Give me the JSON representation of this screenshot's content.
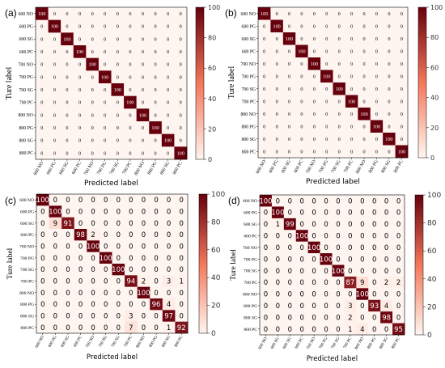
{
  "colors": {
    "low": "#fff5f0",
    "mid": "#f4775a",
    "high": "#67000d",
    "text_dark": "#000000",
    "text_light": "#ffffff"
  },
  "chart_data": [
    {
      "type": "heatmap",
      "panel_label": "(a)",
      "xlabel": "Predicted label",
      "ylabel": "Ture label",
      "row_labels": [
        "600 NO",
        "600 PG",
        "600 SG",
        "600 PC",
        "700 NO",
        "700 PG",
        "700 SG",
        "700 PC",
        "800 NO",
        "800 PG",
        "800 SG",
        "800 PC"
      ],
      "col_labels": [
        "600 NO",
        "600 PG",
        "600 SG",
        "600 PC",
        "700 NO",
        "700 PG",
        "700 SG",
        "700 PC",
        "800 NO",
        "800 PG",
        "800 SG",
        "800 PC"
      ],
      "colorbar_ticks": [
        0,
        20,
        40,
        60,
        80,
        100
      ],
      "vmin": 0,
      "vmax": 100,
      "values": [
        [
          100,
          0,
          0,
          0,
          0,
          0,
          0,
          0,
          0,
          0,
          0,
          0
        ],
        [
          0,
          100,
          0,
          0,
          0,
          0,
          0,
          0,
          0,
          0,
          0,
          0
        ],
        [
          0,
          0,
          100,
          0,
          0,
          0,
          0,
          0,
          0,
          0,
          0,
          0
        ],
        [
          0,
          0,
          0,
          100,
          0,
          0,
          0,
          0,
          0,
          0,
          0,
          0
        ],
        [
          0,
          0,
          0,
          0,
          100,
          0,
          0,
          0,
          0,
          0,
          0,
          0
        ],
        [
          0,
          0,
          0,
          0,
          0,
          100,
          0,
          0,
          0,
          0,
          0,
          0
        ],
        [
          0,
          0,
          0,
          0,
          0,
          0,
          100,
          0,
          0,
          0,
          0,
          0
        ],
        [
          0,
          0,
          0,
          0,
          0,
          0,
          0,
          100,
          0,
          0,
          0,
          0
        ],
        [
          0,
          0,
          0,
          0,
          0,
          0,
          0,
          0,
          100,
          0,
          0,
          0
        ],
        [
          0,
          0,
          0,
          0,
          0,
          0,
          0,
          0,
          0,
          100,
          0,
          0
        ],
        [
          0,
          0,
          0,
          0,
          0,
          0,
          0,
          0,
          0,
          0,
          100,
          0
        ],
        [
          0,
          0,
          0,
          0,
          0,
          0,
          0,
          0,
          0,
          0,
          0,
          100
        ]
      ]
    },
    {
      "type": "heatmap",
      "panel_label": "(b)",
      "xlabel": "Predicted label",
      "ylabel": "Ture label",
      "row_labels": [
        "600 NO",
        "600 PG",
        "600 SG",
        "600 PC",
        "700 NO",
        "700 PG",
        "700 SG",
        "700 PC",
        "800 NO",
        "800 PG",
        "800 SG",
        "800 PC"
      ],
      "col_labels": [
        "600 NO",
        "600 PG",
        "600 SG",
        "600 PC",
        "700 NO",
        "700 PG",
        "700 SG",
        "700 PC",
        "800 NO",
        "800 PG",
        "800 SG",
        "800 PC"
      ],
      "colorbar_ticks": [
        0,
        20,
        40,
        60,
        80,
        100
      ],
      "vmin": 0,
      "vmax": 100,
      "values": [
        [
          100,
          0,
          0,
          0,
          0,
          0,
          0,
          0,
          0,
          0,
          0,
          0
        ],
        [
          0,
          100,
          0,
          0,
          0,
          0,
          0,
          0,
          0,
          0,
          0,
          0
        ],
        [
          0,
          0,
          100,
          0,
          0,
          0,
          0,
          0,
          0,
          0,
          0,
          0
        ],
        [
          0,
          0,
          0,
          100,
          0,
          0,
          0,
          0,
          0,
          0,
          0,
          0
        ],
        [
          0,
          0,
          0,
          0,
          100,
          0,
          0,
          0,
          0,
          0,
          0,
          0
        ],
        [
          0,
          0,
          0,
          0,
          0,
          100,
          0,
          0,
          0,
          0,
          0,
          0
        ],
        [
          0,
          0,
          0,
          0,
          0,
          0,
          100,
          0,
          0,
          0,
          0,
          0
        ],
        [
          0,
          0,
          0,
          0,
          0,
          0,
          0,
          100,
          0,
          0,
          0,
          0
        ],
        [
          0,
          0,
          0,
          0,
          0,
          0,
          0,
          0,
          100,
          0,
          0,
          0
        ],
        [
          0,
          0,
          0,
          0,
          0,
          0,
          0,
          0,
          0,
          100,
          0,
          0
        ],
        [
          0,
          0,
          0,
          0,
          0,
          0,
          0,
          0,
          0,
          0,
          100,
          0
        ],
        [
          0,
          0,
          0,
          0,
          0,
          0,
          0,
          0,
          0,
          0,
          0,
          100
        ]
      ]
    },
    {
      "type": "heatmap",
      "panel_label": "(c)",
      "xlabel": "Predicted label",
      "ylabel": "Ture label",
      "row_labels": [
        "600 NO",
        "600 PG",
        "600 SG",
        "600 PC",
        "700 NO",
        "700 PG",
        "700 SG",
        "700 PC",
        "800 NO",
        "800 PG",
        "800 SG",
        "800 PC"
      ],
      "col_labels": [
        "600 NO",
        "600 PG",
        "600 SG",
        "600 PC",
        "700 NO",
        "700 PG",
        "700 SG",
        "700 PC",
        "800 NO",
        "800 PG",
        "800 SG",
        "800 PC"
      ],
      "colorbar_ticks": [
        0,
        20,
        40,
        60,
        80,
        100
      ],
      "vmin": 0,
      "vmax": 100,
      "values": [
        [
          100,
          0,
          0,
          0,
          0,
          0,
          0,
          0,
          0,
          0,
          0,
          0
        ],
        [
          0,
          100,
          0,
          0,
          0,
          0,
          0,
          0,
          0,
          0,
          0,
          0
        ],
        [
          0,
          9,
          91,
          0,
          0,
          0,
          0,
          0,
          0,
          0,
          0,
          0
        ],
        [
          0,
          0,
          0,
          98,
          2,
          0,
          0,
          0,
          0,
          0,
          0,
          0
        ],
        [
          0,
          0,
          0,
          0,
          100,
          0,
          0,
          0,
          0,
          0,
          0,
          0
        ],
        [
          0,
          0,
          0,
          0,
          0,
          100,
          0,
          0,
          0,
          0,
          0,
          0
        ],
        [
          0,
          0,
          0,
          0,
          0,
          0,
          100,
          0,
          0,
          0,
          0,
          0
        ],
        [
          0,
          0,
          0,
          0,
          0,
          0,
          0,
          94,
          2,
          0,
          3,
          1
        ],
        [
          0,
          0,
          0,
          0,
          0,
          0,
          0,
          0,
          100,
          0,
          0,
          0
        ],
        [
          0,
          0,
          0,
          0,
          0,
          0,
          0,
          0,
          0,
          96,
          4,
          0
        ],
        [
          0,
          0,
          0,
          0,
          0,
          0,
          0,
          3,
          0,
          0,
          97,
          0
        ],
        [
          0,
          0,
          0,
          0,
          0,
          0,
          0,
          7,
          0,
          0,
          1,
          92
        ]
      ]
    },
    {
      "type": "heatmap",
      "panel_label": "(d)",
      "xlabel": "Predicted label",
      "ylabel": "Ture label",
      "row_labels": [
        "600 NO",
        "600 PG",
        "600 SG",
        "600 PC",
        "700 NO",
        "700 PG",
        "700 SG",
        "700 PC",
        "800 NO",
        "800 PG",
        "800 SG",
        "800 PC"
      ],
      "col_labels": [
        "600 NO",
        "600 PG",
        "600 SG",
        "600 PC",
        "700 NO",
        "700 PG",
        "700 SG",
        "700 PC",
        "800 NO",
        "800 PG",
        "800 SG",
        "800 PC"
      ],
      "colorbar_ticks": [
        0,
        20,
        40,
        60,
        80,
        100
      ],
      "vmin": 0,
      "vmax": 100,
      "values": [
        [
          100,
          0,
          0,
          0,
          0,
          0,
          0,
          0,
          0,
          0,
          0,
          0
        ],
        [
          0,
          100,
          0,
          0,
          0,
          0,
          0,
          0,
          0,
          0,
          0,
          0
        ],
        [
          0,
          1,
          99,
          0,
          0,
          0,
          0,
          0,
          0,
          0,
          0,
          0
        ],
        [
          0,
          0,
          0,
          100,
          0,
          0,
          0,
          0,
          0,
          0,
          0,
          0
        ],
        [
          0,
          0,
          0,
          0,
          100,
          0,
          0,
          0,
          0,
          0,
          0,
          0
        ],
        [
          0,
          0,
          0,
          0,
          0,
          100,
          0,
          0,
          0,
          0,
          0,
          0
        ],
        [
          0,
          0,
          0,
          0,
          0,
          0,
          100,
          0,
          0,
          0,
          0,
          0
        ],
        [
          0,
          0,
          0,
          0,
          0,
          0,
          0,
          87,
          9,
          0,
          2,
          2
        ],
        [
          0,
          0,
          0,
          0,
          0,
          0,
          0,
          0,
          100,
          0,
          0,
          0
        ],
        [
          0,
          0,
          0,
          0,
          0,
          0,
          0,
          3,
          0,
          93,
          4,
          0
        ],
        [
          0,
          0,
          0,
          0,
          0,
          0,
          0,
          2,
          0,
          0,
          98,
          0
        ],
        [
          0,
          0,
          0,
          0,
          0,
          0,
          0,
          1,
          4,
          0,
          0,
          95
        ]
      ]
    }
  ]
}
